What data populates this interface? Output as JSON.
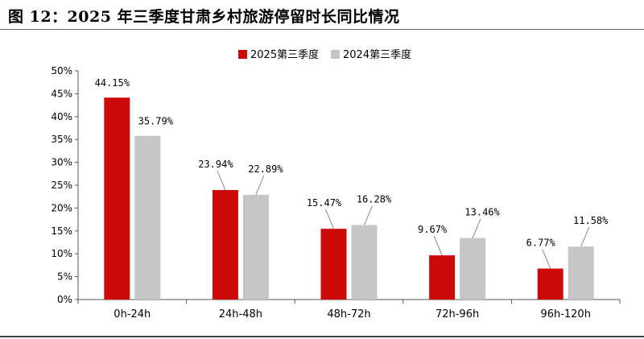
{
  "figure": {
    "title": "图 12：2025 年三季度甘肃乡村旅游停留时长同比情况"
  },
  "colors": {
    "s2025": "#cc0a0a",
    "s2024": "#c6c6c6",
    "axis": "#555555"
  },
  "chart_data": {
    "type": "bar",
    "title": "",
    "xlabel": "",
    "ylabel": "",
    "categories": [
      "0h-24h",
      "24h-48h",
      "48h-72h",
      "72h-96h",
      "96h-120h"
    ],
    "series": [
      {
        "name": "2025第三季度",
        "values": [
          44.15,
          23.94,
          15.47,
          9.67,
          6.77
        ],
        "labels": [
          "44.15%",
          "23.94%",
          "15.47%",
          "9.67%",
          "6.77%"
        ]
      },
      {
        "name": "2024第三季度",
        "values": [
          35.79,
          22.89,
          16.28,
          13.46,
          11.58
        ],
        "labels": [
          "35.79%",
          "22.89%",
          "16.28%",
          "13.46%",
          "11.58%"
        ]
      }
    ],
    "yticks": [
      "0%",
      "5%",
      "10%",
      "15%",
      "20%",
      "25%",
      "30%",
      "35%",
      "40%",
      "45%",
      "50%"
    ],
    "ylim": [
      0,
      50
    ],
    "legend_position": "top-center",
    "grid": false
  }
}
